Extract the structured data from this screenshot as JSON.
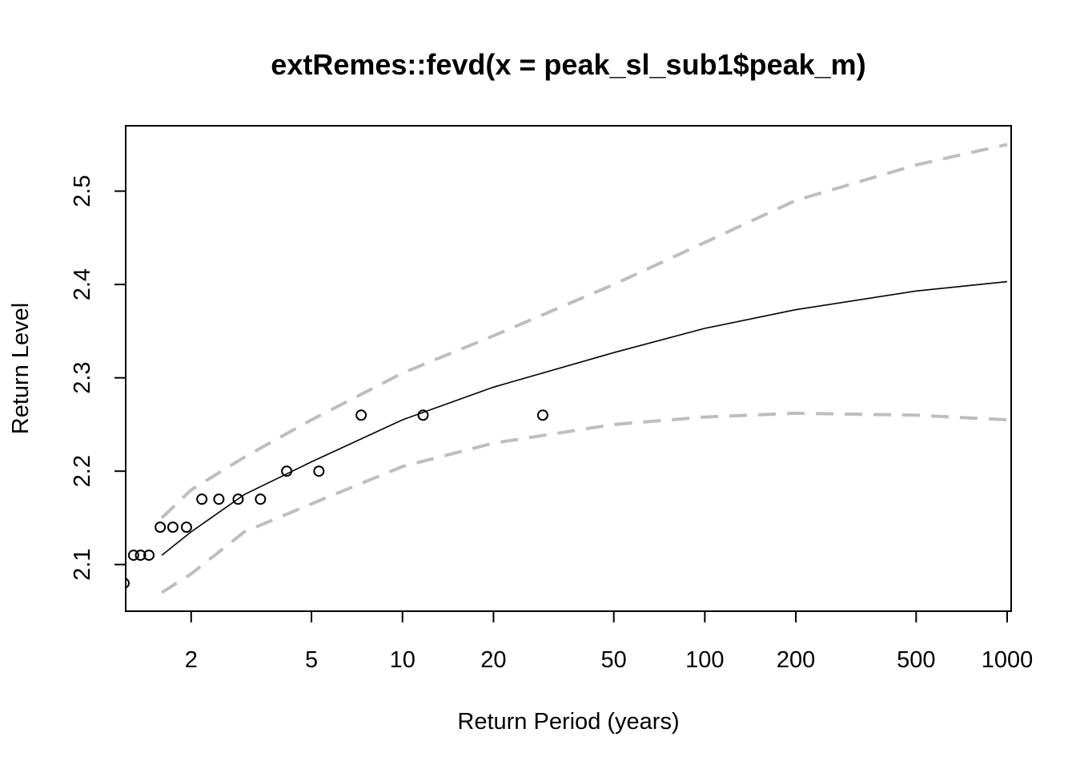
{
  "chart_data": {
    "type": "scatter",
    "title": "extRemes::fevd(x = peak_sl_sub1$peak_m)",
    "xlabel": "Return Period (years)",
    "ylabel": "Return Level",
    "x_scale": "log",
    "xlim": [
      1.2,
      1000
    ],
    "ylim": [
      2.05,
      2.57
    ],
    "x_ticks": [
      2,
      5,
      10,
      20,
      50,
      100,
      200,
      500,
      1000
    ],
    "x_tick_labels": [
      "2",
      "5",
      "10",
      "20",
      "50",
      "100",
      "200",
      "500",
      "1000"
    ],
    "y_ticks": [
      2.1,
      2.2,
      2.3,
      2.4,
      2.5
    ],
    "y_tick_labels": [
      "2.1",
      "2.2",
      "2.3",
      "2.4",
      "2.5"
    ],
    "grid": false,
    "series": [
      {
        "kind": "points",
        "color": "#000000",
        "points": [
          [
            1.2,
            2.08
          ],
          [
            1.29,
            2.11
          ],
          [
            1.36,
            2.11
          ],
          [
            1.45,
            2.11
          ],
          [
            1.58,
            2.14
          ],
          [
            1.74,
            2.14
          ],
          [
            1.93,
            2.14
          ],
          [
            2.17,
            2.17
          ],
          [
            2.47,
            2.17
          ],
          [
            2.86,
            2.17
          ],
          [
            3.39,
            2.17
          ],
          [
            4.14,
            2.2
          ],
          [
            5.29,
            2.2
          ],
          [
            7.3,
            2.26
          ],
          [
            11.7,
            2.26
          ],
          [
            29.1,
            2.26
          ]
        ]
      },
      {
        "kind": "line",
        "color": "#000000",
        "points": [
          [
            1.6,
            2.11
          ],
          [
            2,
            2.135
          ],
          [
            3,
            2.175
          ],
          [
            5,
            2.21
          ],
          [
            10,
            2.255
          ],
          [
            20,
            2.29
          ],
          [
            50,
            2.327
          ],
          [
            100,
            2.353
          ],
          [
            200,
            2.373
          ],
          [
            500,
            2.393
          ],
          [
            1000,
            2.403
          ]
        ]
      },
      {
        "kind": "dashed",
        "color": "#bebebe",
        "points": [
          [
            1.6,
            2.15
          ],
          [
            2,
            2.18
          ],
          [
            3,
            2.215
          ],
          [
            5,
            2.255
          ],
          [
            10,
            2.305
          ],
          [
            20,
            2.345
          ],
          [
            50,
            2.4
          ],
          [
            100,
            2.445
          ],
          [
            200,
            2.49
          ],
          [
            500,
            2.528
          ],
          [
            1000,
            2.55
          ]
        ]
      },
      {
        "kind": "dashed",
        "color": "#bebebe",
        "points": [
          [
            1.6,
            2.07
          ],
          [
            2,
            2.09
          ],
          [
            3,
            2.135
          ],
          [
            5,
            2.165
          ],
          [
            10,
            2.205
          ],
          [
            20,
            2.23
          ],
          [
            50,
            2.25
          ],
          [
            100,
            2.258
          ],
          [
            200,
            2.262
          ],
          [
            500,
            2.26
          ],
          [
            1000,
            2.255
          ]
        ]
      }
    ]
  }
}
